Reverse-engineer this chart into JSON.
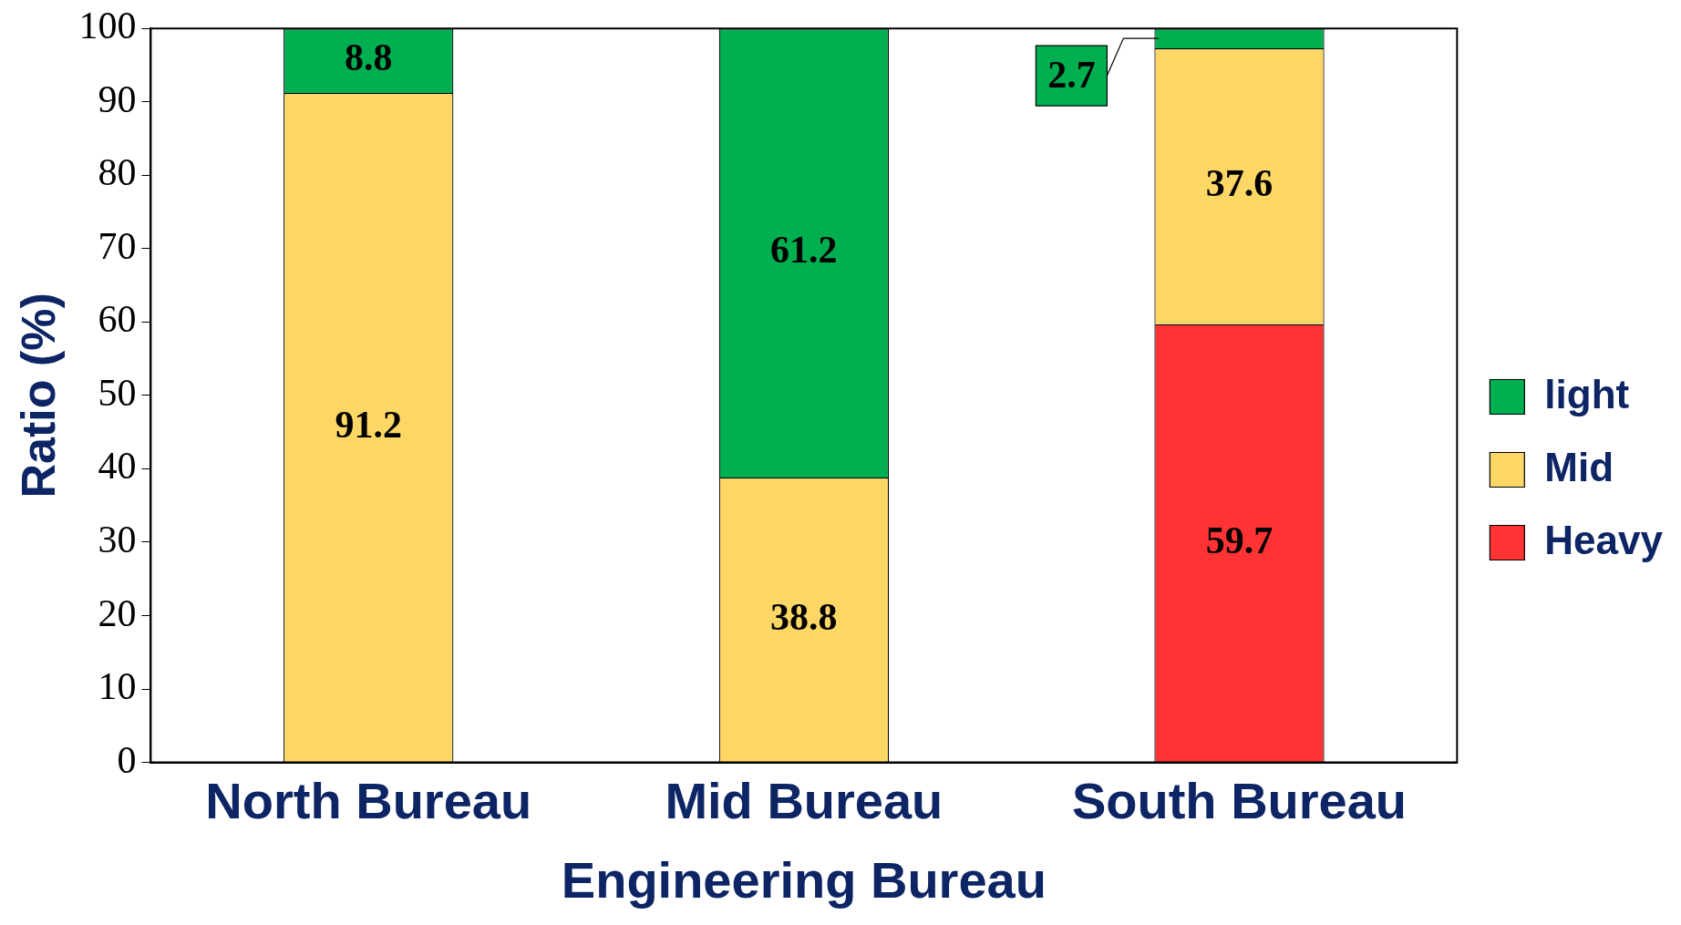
{
  "chart_data": {
    "type": "bar",
    "stacked": true,
    "xlabel": "Engineering Bureau",
    "ylabel": "Ratio (%)",
    "categories": [
      "North Bureau",
      "Mid Bureau",
      "South Bureau"
    ],
    "series": [
      {
        "name": "Heavy",
        "color": "#ff3333",
        "values": [
          null,
          null,
          59.7
        ]
      },
      {
        "name": "Mid",
        "color": "#fdd766",
        "values": [
          91.2,
          38.8,
          37.6
        ]
      },
      {
        "name": "light",
        "color": "#00b050",
        "values": [
          8.8,
          61.2,
          2.7
        ]
      }
    ],
    "ylim": [
      0,
      100
    ],
    "yticks": [
      0,
      10,
      20,
      30,
      40,
      50,
      60,
      70,
      80,
      90,
      100
    ],
    "grid": false,
    "legend": "right",
    "data_labels": true
  }
}
